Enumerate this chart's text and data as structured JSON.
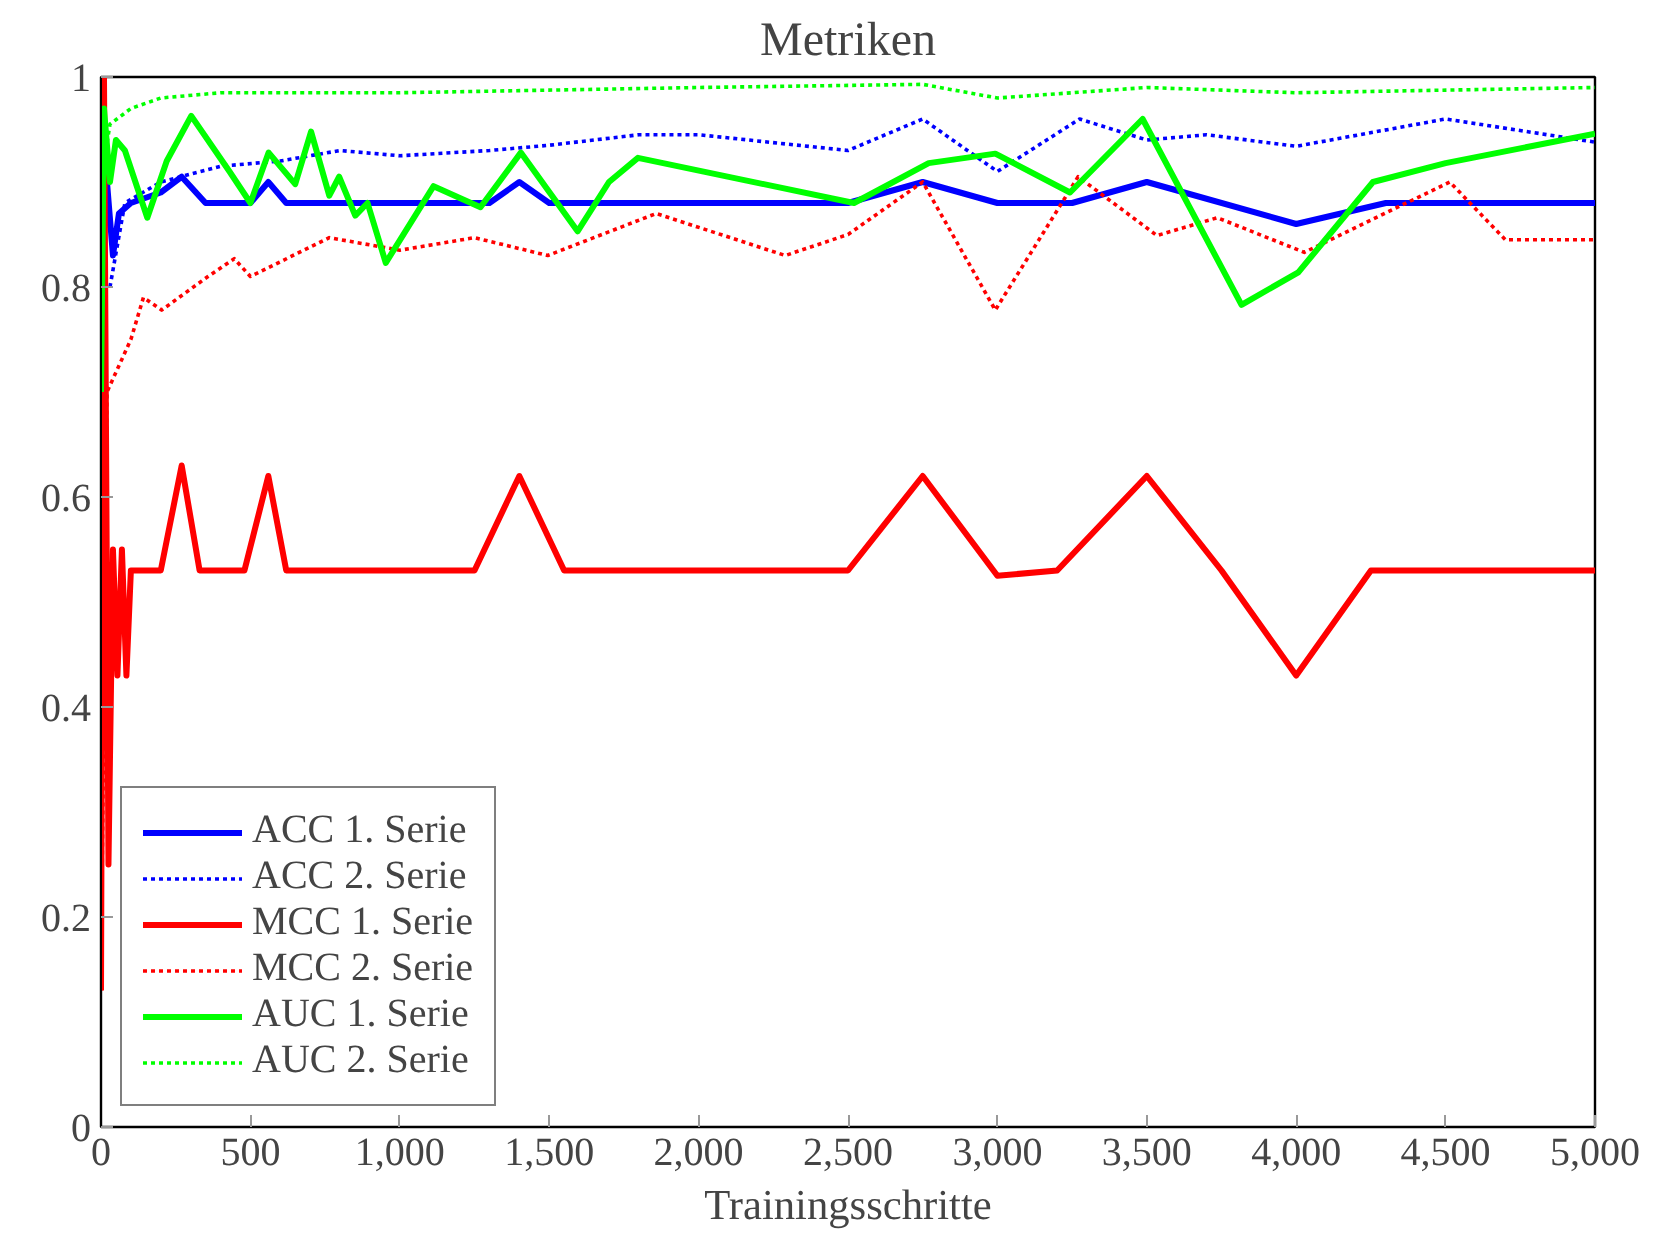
{
  "chart_data": {
    "type": "line",
    "title": "Metriken",
    "xlabel": "Trainingsschritte",
    "xlim": [
      0,
      5000
    ],
    "ylim": [
      0,
      1
    ],
    "xticks": [
      0,
      500,
      {
        "value": 1000,
        "label": "1,000"
      },
      {
        "value": 1500,
        "label": "1,500"
      },
      {
        "value": 2000,
        "label": "2,000"
      },
      {
        "value": 2500,
        "label": "2,500"
      },
      {
        "value": 3000,
        "label": "3,000"
      },
      {
        "value": 3500,
        "label": "3,500"
      },
      {
        "value": 4000,
        "label": "4,000"
      },
      {
        "value": 4500,
        "label": "4,500"
      },
      {
        "value": 5000,
        "label": "5,000"
      }
    ],
    "yticks": [
      0,
      0.2,
      0.4,
      0.6,
      0.8,
      1
    ],
    "grid": false,
    "legend": "bottom left",
    "series": [
      {
        "name": "ACC 1. Serie",
        "color": "#0000ff",
        "line_style": "solid",
        "x": [
          0,
          20,
          40,
          60,
          100,
          200,
          270,
          350,
          500,
          560,
          620,
          1000,
          1300,
          1400,
          1500,
          2500,
          2750,
          3000,
          3250,
          3500,
          4000,
          4300,
          5000
        ],
        "values": [
          0.8,
          0.9,
          0.83,
          0.87,
          0.88,
          0.89,
          0.905,
          0.88,
          0.88,
          0.9,
          0.88,
          0.88,
          0.88,
          0.9,
          0.88,
          0.88,
          0.9,
          0.88,
          0.88,
          0.9,
          0.86,
          0.88,
          0.88
        ]
      },
      {
        "name": "ACC 2. Serie",
        "color": "#0000ff",
        "line_style": "dotted",
        "x": [
          30,
          80,
          200,
          400,
          600,
          800,
          1000,
          1300,
          1500,
          1800,
          2000,
          2500,
          2750,
          3000,
          3275,
          3500,
          3700,
          4000,
          4500,
          5000
        ],
        "values": [
          0.8,
          0.88,
          0.9,
          0.915,
          0.92,
          0.93,
          0.925,
          0.93,
          0.935,
          0.945,
          0.945,
          0.93,
          0.96,
          0.91,
          0.96,
          0.94,
          0.945,
          0.934,
          0.96,
          0.938
        ]
      },
      {
        "name": "MCC 1. Serie",
        "color": "#ff0000",
        "line_style": "solid",
        "x": [
          0,
          10,
          25,
          40,
          55,
          70,
          85,
          100,
          200,
          270,
          330,
          400,
          480,
          560,
          620,
          1000,
          1250,
          1400,
          1550,
          2000,
          2500,
          2750,
          3000,
          3200,
          3500,
          3750,
          4000,
          4250,
          4500,
          5000
        ],
        "values": [
          0.13,
          1.0,
          0.25,
          0.55,
          0.43,
          0.55,
          0.43,
          0.53,
          0.53,
          0.63,
          0.53,
          0.53,
          0.53,
          0.62,
          0.53,
          0.53,
          0.53,
          0.62,
          0.53,
          0.53,
          0.53,
          0.62,
          0.525,
          0.53,
          0.62,
          0.53,
          0.43,
          0.53,
          0.53,
          0.53
        ]
      },
      {
        "name": "MCC 2. Serie",
        "color": "#ff0000",
        "line_style": "dotted",
        "x": [
          0,
          20,
          100,
          142,
          203,
          358,
          446,
          500,
          764,
          1000,
          1250,
          1495,
          1858,
          2290,
          2500,
          2750,
          2993,
          3270,
          3534,
          3736,
          4027,
          4514,
          4700,
          5000
        ],
        "values": [
          0.13,
          0.7,
          0.75,
          0.79,
          0.778,
          0.81,
          0.827,
          0.81,
          0.847,
          0.835,
          0.847,
          0.83,
          0.87,
          0.83,
          0.85,
          0.9,
          0.778,
          0.905,
          0.849,
          0.866,
          0.833,
          0.9,
          0.845,
          0.845
        ]
      },
      {
        "name": "AUC 1. Serie",
        "color": "#00ff00",
        "line_style": "solid",
        "x": [
          0,
          10,
          30,
          50,
          80,
          155,
          220,
          302,
          430,
          500,
          561,
          650,
          703,
          764,
          797,
          851,
          892,
          953,
          1113,
          1270,
          1405,
          1595,
          1700,
          1797,
          2520,
          2770,
          2993,
          3243,
          3486,
          3817,
          4007,
          4257,
          4500,
          5000
        ],
        "values": [
          0.7,
          0.97,
          0.9,
          0.94,
          0.93,
          0.866,
          0.92,
          0.963,
          0.91,
          0.88,
          0.928,
          0.898,
          0.948,
          0.887,
          0.905,
          0.868,
          0.88,
          0.823,
          0.896,
          0.876,
          0.928,
          0.853,
          0.9,
          0.923,
          0.88,
          0.918,
          0.927,
          0.89,
          0.96,
          0.783,
          0.814,
          0.9,
          0.918,
          0.946
        ]
      },
      {
        "name": "AUC 2. Serie",
        "color": "#00ff00",
        "line_style": "dotted",
        "x": [
          0,
          30,
          100,
          200,
          400,
          1000,
          2000,
          2750,
          3000,
          3500,
          4000,
          5000
        ],
        "values": [
          0.9,
          0.955,
          0.97,
          0.98,
          0.985,
          0.985,
          0.99,
          0.993,
          0.98,
          0.99,
          0.985,
          0.99
        ]
      }
    ]
  }
}
